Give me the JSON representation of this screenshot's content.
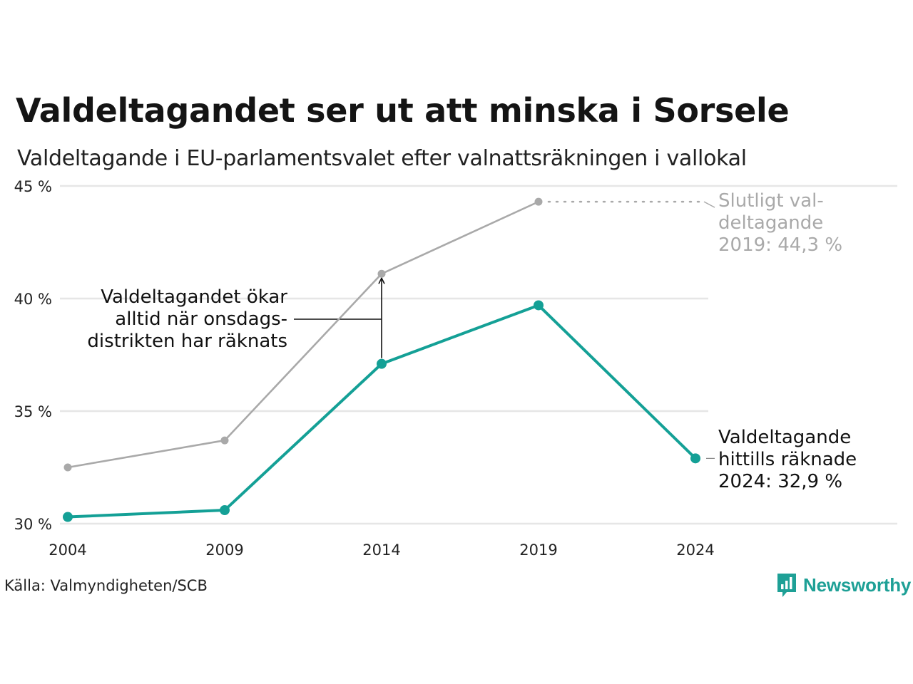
{
  "title": "Valdeltagandet ser ut att minska i Sorsele",
  "subtitle": "Valdeltagande i EU-parlamentsvalet efter valnattsräkningen i vallokal",
  "source": "Källa: Valmyndigheten/SCB",
  "logo": {
    "text": "Newsworthy",
    "icon": "bar-chart-speech-bubble-icon"
  },
  "colors": {
    "final": "#a9a9a9",
    "counted": "#14a096",
    "grid": "#e6e6e6",
    "annotation_final": "#a9a9a9",
    "annotation_main": "#111111"
  },
  "chart_data": {
    "type": "line",
    "x": [
      2004,
      2009,
      2014,
      2019,
      2024
    ],
    "ylim": [
      30,
      45
    ],
    "yticks": [
      30,
      35,
      40,
      45
    ],
    "ytick_labels": [
      "30 %",
      "35 %",
      "40 %",
      "45 %"
    ],
    "xtick_labels": [
      "2004",
      "2009",
      "2014",
      "2019",
      "2024"
    ],
    "grid": true,
    "series": [
      {
        "key": "final",
        "values": [
          32.5,
          33.7,
          41.1,
          44.3,
          null
        ]
      },
      {
        "key": "counted",
        "values": [
          30.3,
          30.6,
          37.1,
          39.7,
          32.9
        ]
      }
    ],
    "annotations": {
      "final_2019": [
        "Slutligt val-",
        "deltagande",
        "2019: 44,3 %"
      ],
      "counted_2024": [
        "Valdeltagande",
        "hittills räknade",
        "2024: 32,9 %"
      ],
      "increase": [
        "Valdeltagandet ökar",
        "alltid när onsdags-",
        "distrikten har räknats"
      ]
    }
  }
}
